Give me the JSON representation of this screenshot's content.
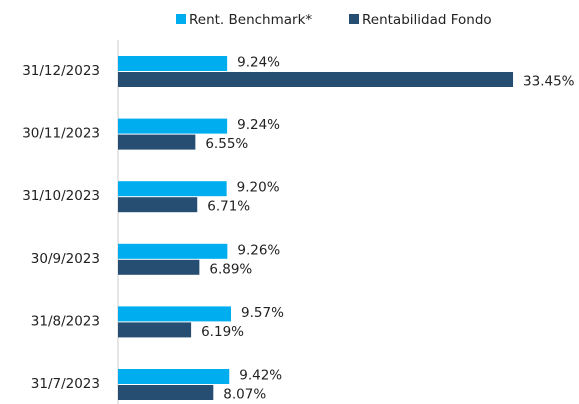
{
  "chart_data": {
    "type": "bar",
    "orientation": "horizontal",
    "categories": [
      "31/12/2023",
      "30/11/2023",
      "31/10/2023",
      "30/9/2023",
      "31/8/2023",
      "31/7/2023"
    ],
    "series": [
      {
        "name": "Rent. Benchmark*",
        "color": "#00aeef",
        "values": [
          9.24,
          9.24,
          9.2,
          9.26,
          9.57,
          9.42
        ],
        "value_labels": [
          "9.24%",
          "9.24%",
          "9.20%",
          "9.26%",
          "9.57%",
          "9.42%"
        ]
      },
      {
        "name": "Rentabilidad Fondo",
        "color": "#264e72",
        "values": [
          33.45,
          6.55,
          6.71,
          6.89,
          6.19,
          8.07
        ],
        "value_labels": [
          "33.45%",
          "6.55%",
          "6.71%",
          "6.89%",
          "6.19%",
          "8.07%"
        ]
      }
    ],
    "legend": "top"
  }
}
